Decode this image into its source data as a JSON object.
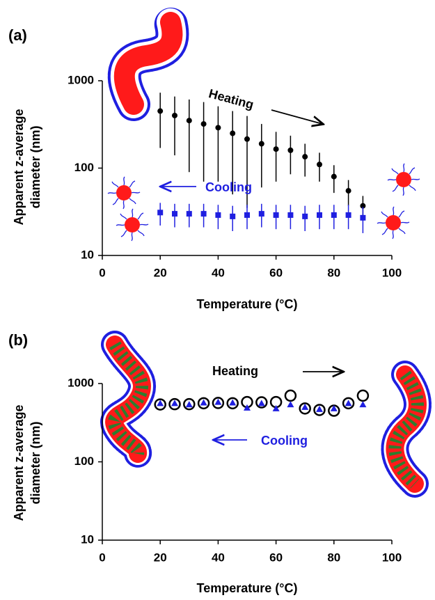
{
  "chart_data": [
    {
      "type": "scatter",
      "panel_label": "(a)",
      "x_label": "Temperature (°C)",
      "y_label": [
        "Apparent z-average",
        "diameter (nm)"
      ],
      "xlim": [
        0,
        100
      ],
      "xticks": [
        0,
        20,
        40,
        60,
        80,
        100
      ],
      "ylim": [
        10,
        1000
      ],
      "yticks": [
        10,
        100,
        1000
      ],
      "ylog": true,
      "x": [
        20,
        25,
        30,
        35,
        40,
        45,
        50,
        55,
        60,
        65,
        70,
        75,
        80,
        85,
        90
      ],
      "series": [
        {
          "name": "Heating",
          "color": "#000000",
          "marker": "circle",
          "values": [
            450,
            400,
            350,
            320,
            290,
            250,
            215,
            190,
            165,
            160,
            135,
            110,
            80,
            55,
            37
          ],
          "error": [
            280,
            260,
            260,
            250,
            220,
            200,
            180,
            130,
            95,
            75,
            55,
            40,
            28,
            18,
            11
          ]
        },
        {
          "name": "Cooling",
          "color": "#1f1fe0",
          "marker": "square",
          "values": [
            31,
            30,
            30,
            30,
            29,
            28,
            29,
            30,
            29,
            29,
            28,
            29,
            29,
            29,
            27
          ],
          "error": [
            9,
            9,
            9,
            9,
            9,
            9,
            9,
            9,
            9,
            9,
            9,
            9,
            9,
            9,
            9
          ]
        }
      ]
    },
    {
      "type": "scatter",
      "panel_label": "(b)",
      "x_label": "Temperature (°C)",
      "y_label": [
        "Apparent z-average",
        "diameter (nm)"
      ],
      "xlim": [
        0,
        100
      ],
      "xticks": [
        0,
        20,
        40,
        60,
        80,
        100
      ],
      "ylim": [
        10,
        1000
      ],
      "yticks": [
        10,
        100,
        1000
      ],
      "ylog": true,
      "x": [
        20,
        25,
        30,
        35,
        40,
        45,
        50,
        55,
        60,
        65,
        70,
        75,
        80,
        85,
        90
      ],
      "series": [
        {
          "name": "Heating",
          "color": "#000000",
          "marker": "open-circle",
          "values": [
            540,
            545,
            545,
            560,
            565,
            560,
            580,
            575,
            580,
            700,
            480,
            460,
            450,
            560,
            700
          ]
        },
        {
          "name": "Cooling",
          "color": "#1f1fe0",
          "marker": "triangle",
          "values": [
            560,
            560,
            540,
            570,
            580,
            570,
            490,
            560,
            480,
            540,
            500,
            470,
            480,
            560,
            540
          ]
        }
      ]
    }
  ]
}
